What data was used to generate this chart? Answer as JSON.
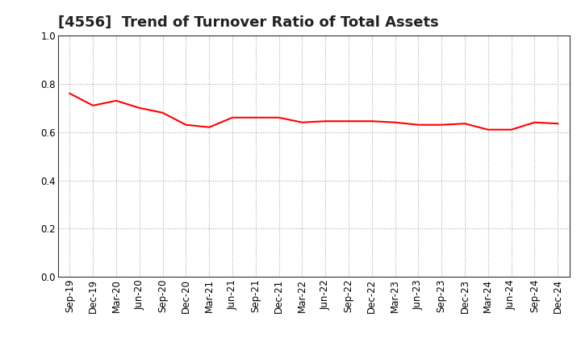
{
  "title": "[4556]  Trend of Turnover Ratio of Total Assets",
  "labels": [
    "Sep-19",
    "Dec-19",
    "Mar-20",
    "Jun-20",
    "Sep-20",
    "Dec-20",
    "Mar-21",
    "Jun-21",
    "Sep-21",
    "Dec-21",
    "Mar-22",
    "Jun-22",
    "Sep-22",
    "Dec-22",
    "Mar-23",
    "Jun-23",
    "Sep-23",
    "Dec-23",
    "Mar-24",
    "Jun-24",
    "Sep-24",
    "Dec-24"
  ],
  "values": [
    0.76,
    0.71,
    0.73,
    0.7,
    0.68,
    0.63,
    0.62,
    0.66,
    0.66,
    0.66,
    0.64,
    0.645,
    0.645,
    0.645,
    0.64,
    0.63,
    0.63,
    0.635,
    0.61,
    0.61,
    0.64,
    0.635
  ],
  "line_color": "#FF0000",
  "line_width": 1.5,
  "ylim": [
    0.0,
    1.0
  ],
  "yticks": [
    0.0,
    0.2,
    0.4,
    0.6,
    0.8,
    1.0
  ],
  "background_color": "#FFFFFF",
  "plot_bg_color": "#FFFFFF",
  "grid_color": "#AAAAAA",
  "title_fontsize": 13,
  "tick_fontsize": 8.5,
  "title_color": "#222222"
}
